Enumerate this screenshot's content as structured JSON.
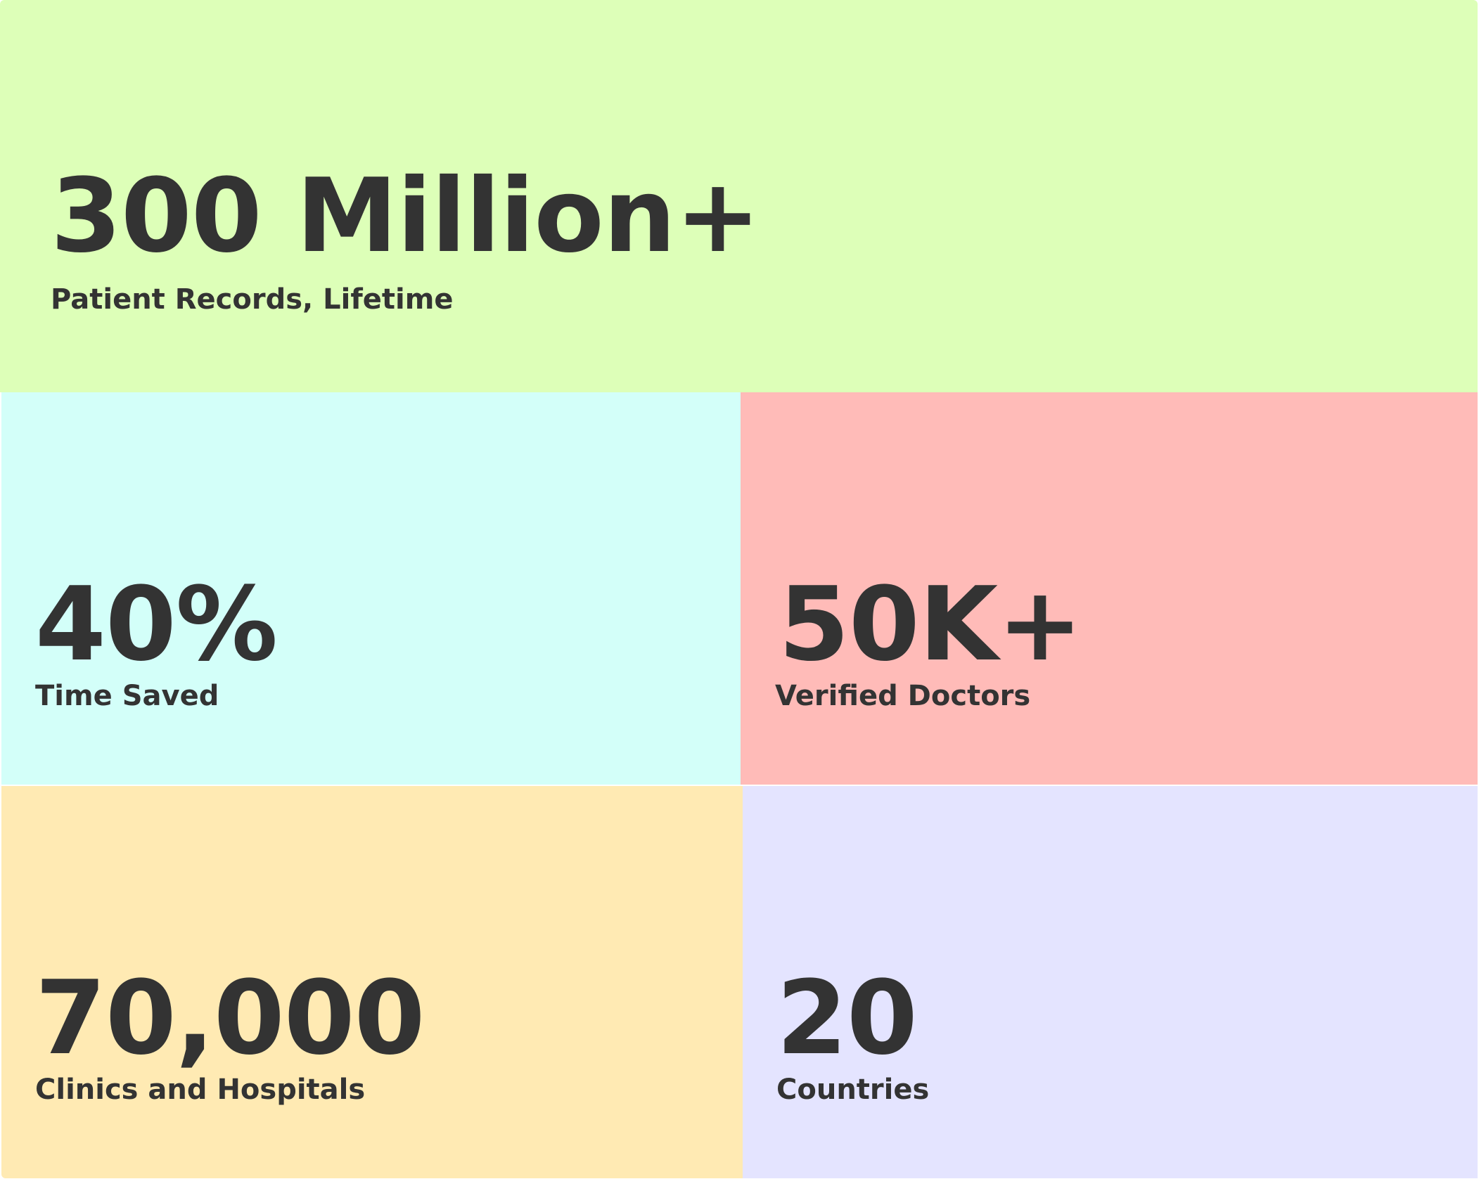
{
  "stats": [
    {
      "value": "300 Million+",
      "label": "Patient Records, Lifetime",
      "color": "#DDFFB8"
    },
    {
      "value": "40%",
      "label": "Time Saved",
      "color": "#D3FFF9"
    },
    {
      "value": "50K+",
      "label": "Verified Doctors",
      "color": "#FFBBB8"
    },
    {
      "value": "70,000",
      "label": "Clinics and Hospitals",
      "color": "#FFEAB3"
    },
    {
      "value": "20",
      "label": "Countries",
      "color": "#E4E4FF"
    }
  ],
  "text_color": "#333333"
}
